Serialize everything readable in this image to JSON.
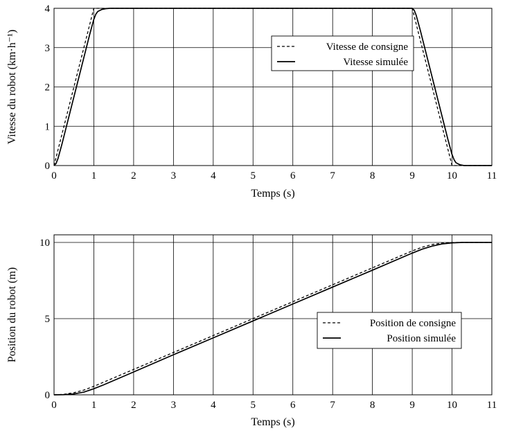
{
  "chart_data": [
    {
      "type": "line",
      "xlabel": "Temps (s)",
      "ylabel": "Vitesse du robot (km·h⁻¹)",
      "xlim": [
        0,
        11
      ],
      "ylim": [
        0,
        4
      ],
      "xticks": [
        "0",
        "1",
        "2",
        "3",
        "4",
        "5",
        "6",
        "7",
        "8",
        "9",
        "10",
        "11"
      ],
      "yticks": [
        "0",
        "1",
        "2",
        "3",
        "4"
      ],
      "grid": true,
      "legend_position": "top-right",
      "series": [
        {
          "name": "Vitesse de consigne",
          "style": "dashed",
          "x": [
            0,
            1,
            9,
            10,
            11
          ],
          "y": [
            0,
            4,
            4,
            0,
            0
          ]
        },
        {
          "name": "Vitesse simulée",
          "style": "solid",
          "x": [
            0,
            0.05,
            0.1,
            0.2,
            0.3,
            0.5,
            0.7,
            0.9,
            1.0,
            1.05,
            1.1,
            1.2,
            1.3,
            1.4,
            1.5,
            2,
            8,
            9,
            9.05,
            9.1,
            9.2,
            9.3,
            9.5,
            9.7,
            9.9,
            10.0,
            10.05,
            10.1,
            10.2,
            10.3,
            10.5,
            11
          ],
          "y": [
            0,
            0.05,
            0.18,
            0.55,
            0.95,
            1.75,
            2.55,
            3.35,
            3.72,
            3.85,
            3.92,
            3.97,
            3.99,
            4.0,
            4.0,
            4.0,
            4.0,
            4.0,
            3.95,
            3.82,
            3.45,
            3.05,
            2.25,
            1.45,
            0.65,
            0.28,
            0.15,
            0.07,
            0.02,
            0.0,
            0.0,
            0.0
          ]
        }
      ]
    },
    {
      "type": "line",
      "xlabel": "Temps (s)",
      "ylabel": "Position du robot (m)",
      "xlim": [
        0,
        11
      ],
      "ylim": [
        0,
        10.5
      ],
      "xticks": [
        "0",
        "1",
        "2",
        "3",
        "4",
        "5",
        "6",
        "7",
        "8",
        "9",
        "10",
        "11"
      ],
      "yticks": [
        "0",
        "5",
        "10"
      ],
      "grid": true,
      "legend_position": "center-right",
      "series": [
        {
          "name": "Position de consigne",
          "style": "dashed",
          "x": [
            0,
            0.25,
            0.5,
            0.75,
            1,
            2,
            3,
            4,
            5,
            6,
            7,
            8,
            9,
            9.25,
            9.5,
            9.75,
            10,
            11
          ],
          "y": [
            0,
            0.035,
            0.139,
            0.313,
            0.556,
            1.667,
            2.778,
            3.889,
            5.0,
            6.111,
            7.222,
            8.333,
            9.444,
            9.687,
            9.861,
            9.965,
            10.0,
            10.0
          ]
        },
        {
          "name": "Position simulée",
          "style": "solid",
          "x": [
            0,
            0.25,
            0.5,
            0.75,
            1,
            1.25,
            2,
            3,
            4,
            5,
            6,
            7,
            8,
            9,
            9.25,
            9.5,
            9.75,
            10,
            10.25,
            11
          ],
          "y": [
            0,
            0.01,
            0.06,
            0.18,
            0.4,
            0.66,
            1.5,
            2.63,
            3.74,
            4.85,
            5.96,
            7.07,
            8.18,
            9.3,
            9.56,
            9.76,
            9.9,
            9.97,
            10.0,
            10.0
          ]
        }
      ]
    }
  ]
}
